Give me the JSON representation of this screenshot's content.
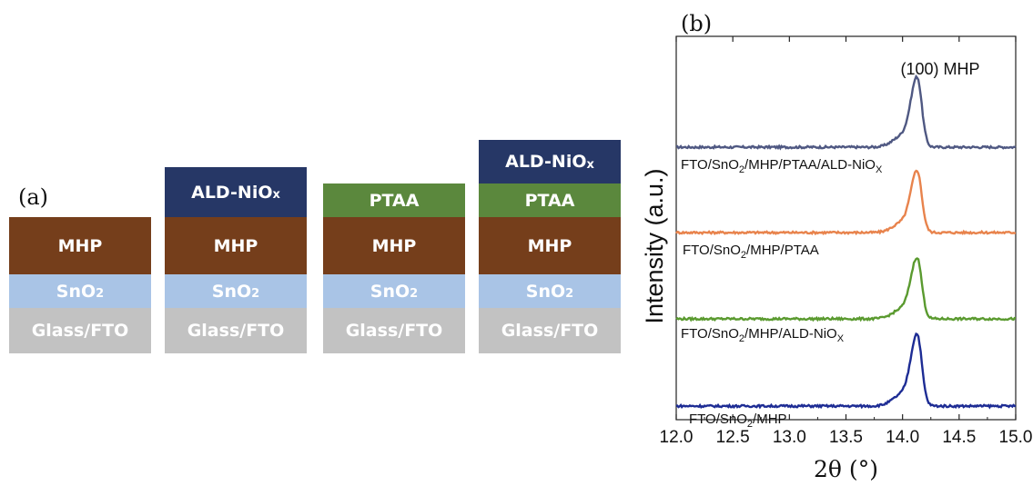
{
  "panel_a_label": "(a)",
  "panel_b_label": "(b)",
  "stacks": [
    {
      "name": "stack-1",
      "layers": [
        {
          "text": "MHP",
          "sub": "",
          "cls": "mhp"
        },
        {
          "text": "SnO",
          "sub": "2",
          "cls": "sno2"
        },
        {
          "text": "Glass/FTO",
          "sub": "",
          "cls": "glass"
        }
      ]
    },
    {
      "name": "stack-2",
      "layers": [
        {
          "text": "ALD-NiO",
          "sub": "x",
          "cls": "nio"
        },
        {
          "text": "MHP",
          "sub": "",
          "cls": "mhp"
        },
        {
          "text": "SnO",
          "sub": "2",
          "cls": "sno2"
        },
        {
          "text": "Glass/FTO",
          "sub": "",
          "cls": "glass"
        }
      ]
    },
    {
      "name": "stack-3",
      "layers": [
        {
          "text": "PTAA",
          "sub": "",
          "cls": "ptaa"
        },
        {
          "text": "MHP",
          "sub": "",
          "cls": "mhp"
        },
        {
          "text": "SnO",
          "sub": "2",
          "cls": "sno2"
        },
        {
          "text": "Glass/FTO",
          "sub": "",
          "cls": "glass"
        }
      ]
    },
    {
      "name": "stack-4",
      "layers": [
        {
          "text": "ALD-NiO",
          "sub": "x",
          "cls": "nio"
        },
        {
          "text": "PTAA",
          "sub": "",
          "cls": "ptaa"
        },
        {
          "text": "MHP",
          "sub": "",
          "cls": "mhp"
        },
        {
          "text": "SnO",
          "sub": "2",
          "cls": "sno2"
        },
        {
          "text": "Glass/FTO",
          "sub": "",
          "cls": "glass"
        }
      ]
    }
  ],
  "chart_data": {
    "type": "line",
    "xlabel": "2θ (°)",
    "ylabel": "Intensity (a.u.)",
    "xlim": [
      12.0,
      15.0
    ],
    "x_ticks": [
      "12.0",
      "12.5",
      "13.0",
      "13.5",
      "14.0",
      "14.5",
      "15.0"
    ],
    "y_ticks": "none",
    "grid": false,
    "annotation": "(100) MHP",
    "peak_position": 14.13,
    "series": [
      {
        "name": "FTO/SnO2/MHP/PTAA/ALD-NiOX",
        "label_main": "FTO/SnO",
        "label_sub1": "2",
        "label_mid": "/MHP/PTAA/ALD-NiO",
        "label_sub2": "X",
        "color": "#4f5882",
        "peak_height": 1.0
      },
      {
        "name": "FTO/SnO2/MHP/PTAA",
        "label_main": "FTO/SnO",
        "label_sub1": "2",
        "label_mid": "/MHP/PTAA",
        "label_sub2": "",
        "color": "#e8834c",
        "peak_height": 0.95
      },
      {
        "name": "FTO/SnO2/MHP/ALD-NiOX",
        "label_main": "FTO/SnO",
        "label_sub1": "2",
        "label_mid": "/MHP/ALD-NiO",
        "label_sub2": "X",
        "color": "#5a9a2f",
        "peak_height": 0.95
      },
      {
        "name": "FTO/SnO2/MHP",
        "label_main": "FTO/SnO",
        "label_sub1": "2",
        "label_mid": "/MHP",
        "label_sub2": "",
        "color": "#1d2c94",
        "peak_height": 1.0
      }
    ]
  }
}
